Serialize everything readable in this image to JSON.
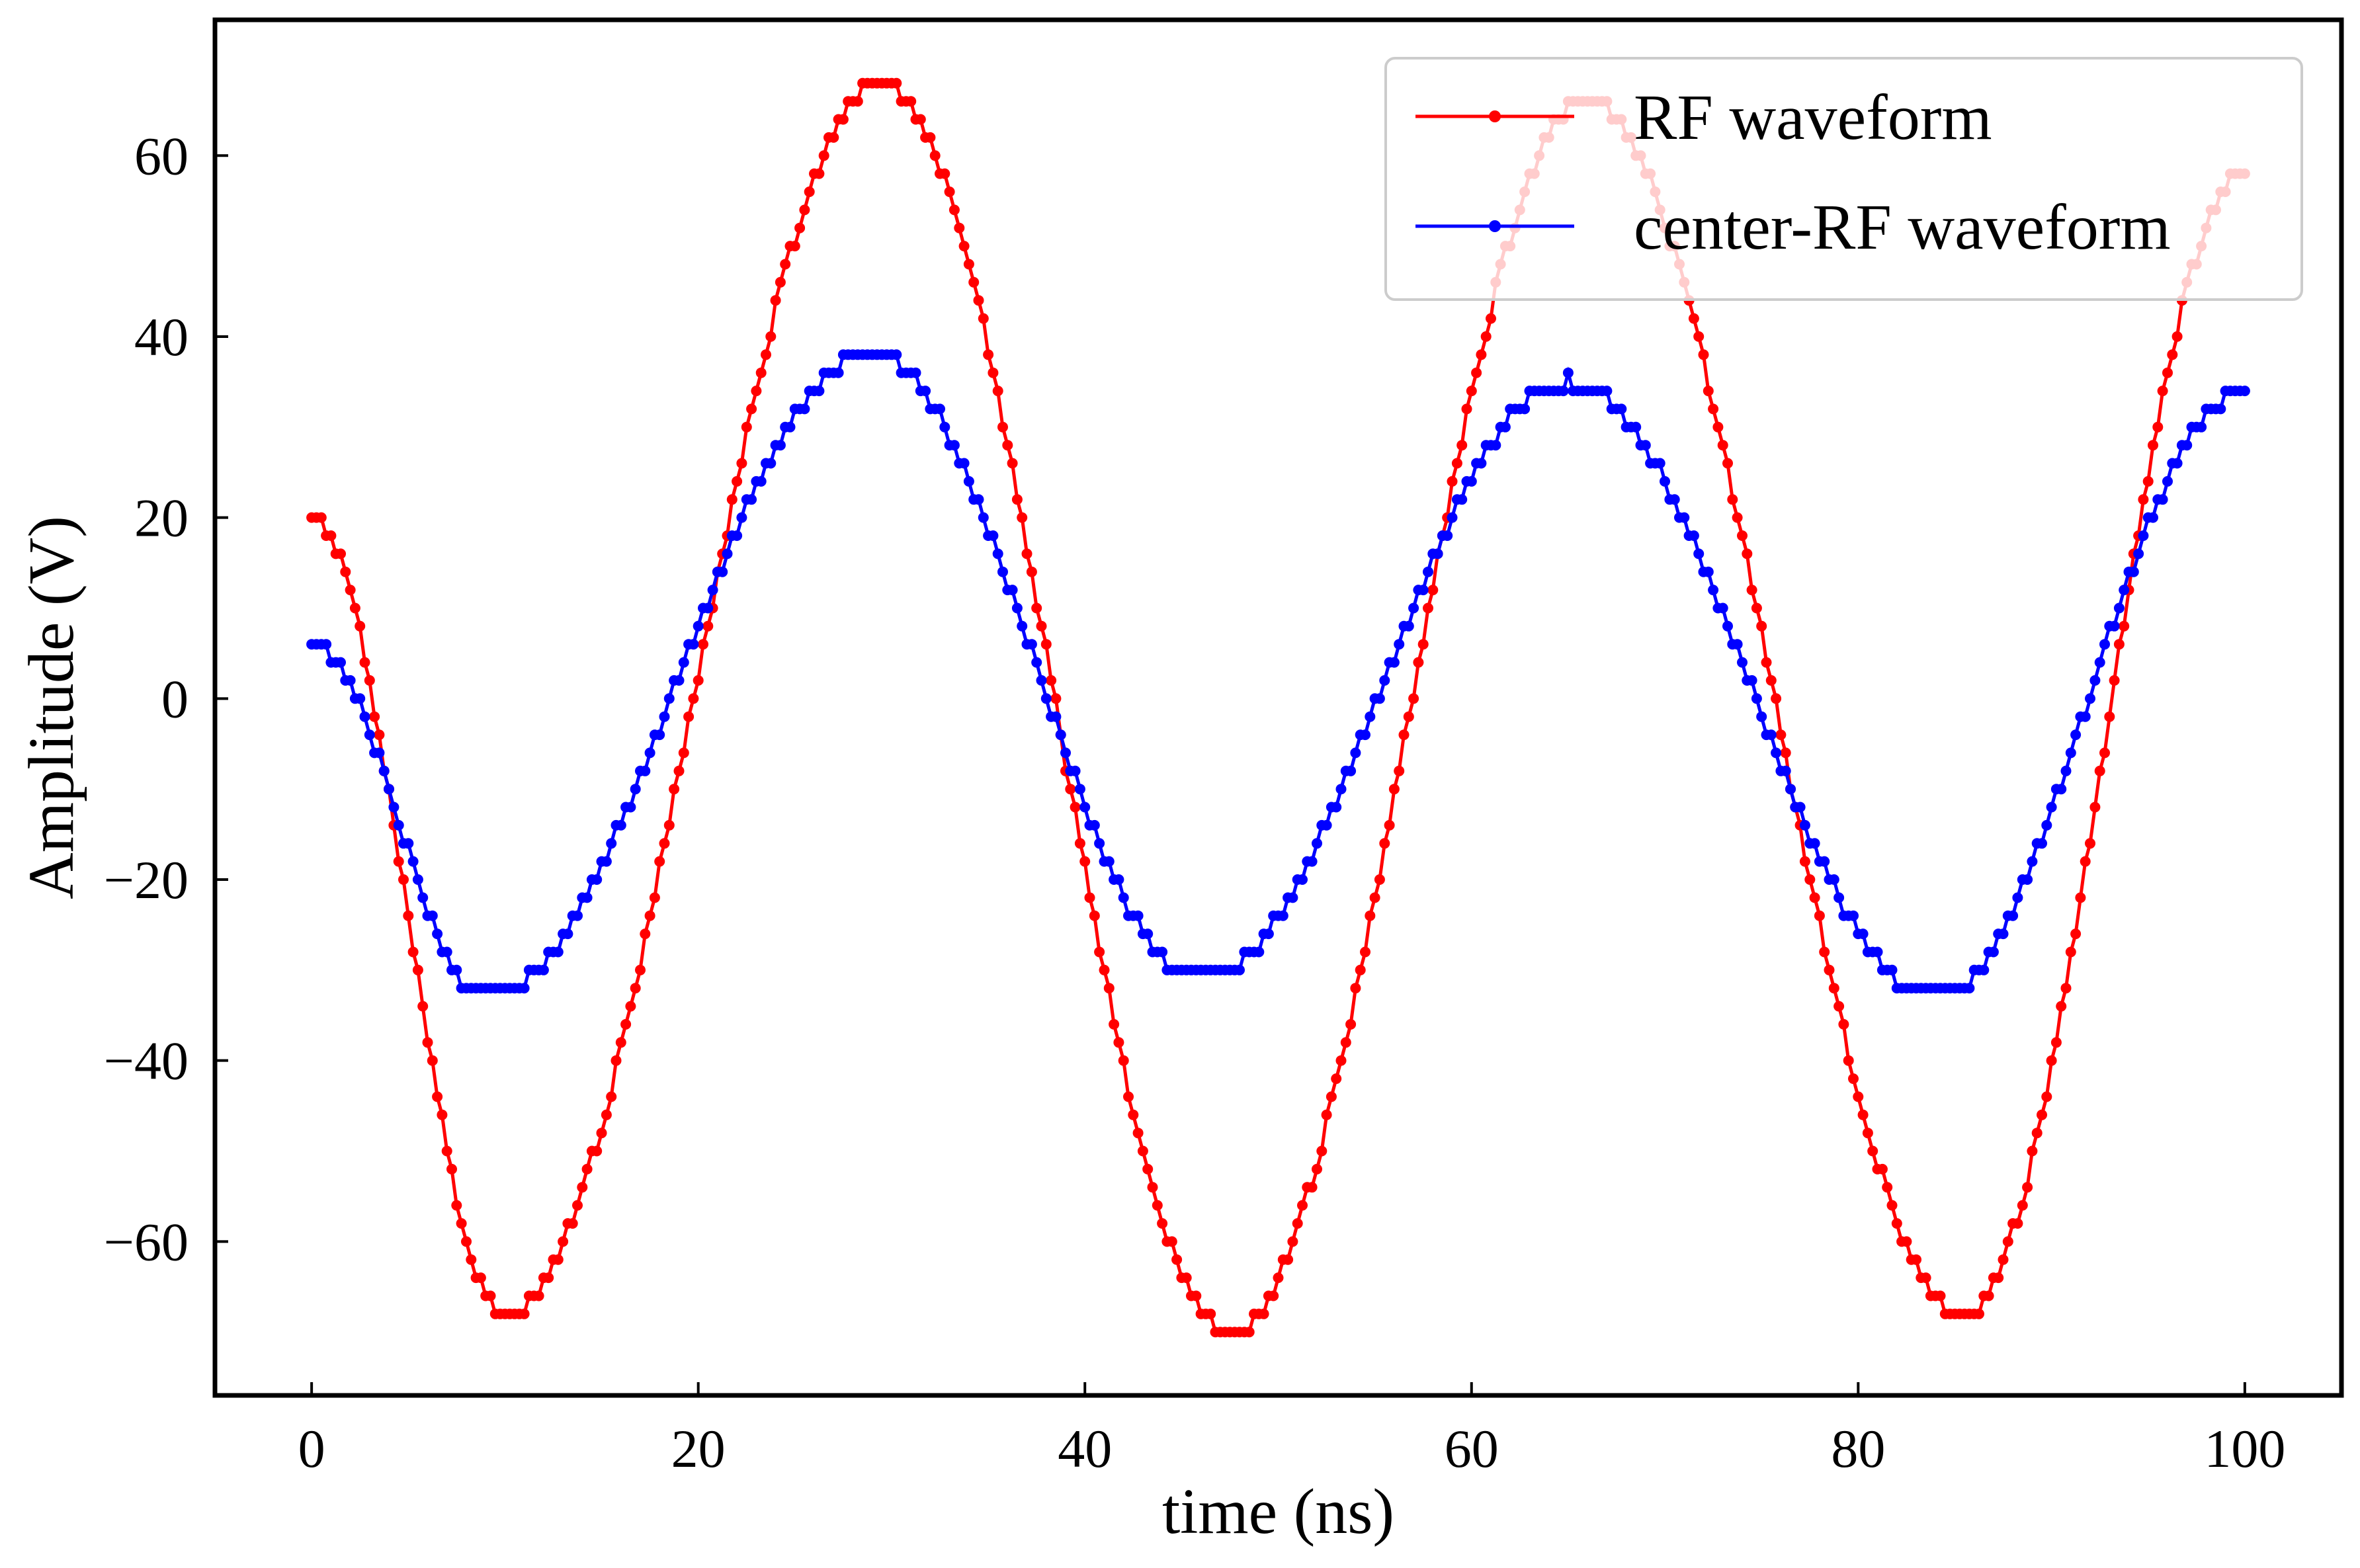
{
  "chart_data": {
    "type": "line",
    "title": "",
    "xlabel": "time (ns)",
    "ylabel": "Amplitude (V)",
    "xlim": [
      -5,
      105
    ],
    "ylim": [
      -77,
      75
    ],
    "xticks": [
      0,
      20,
      40,
      60,
      80,
      100
    ],
    "yticks": [
      -60,
      -40,
      -20,
      0,
      20,
      40,
      60
    ],
    "grid": false,
    "legend": {
      "position": "top-right"
    },
    "sample_interval_ns": 0.25,
    "step_v": 2,
    "series": [
      {
        "name": "RF waveform",
        "color": "#ff0000",
        "marker": "dot",
        "keypoints": [
          {
            "t": 0,
            "v": 20
          },
          {
            "t": 10,
            "v": -68
          },
          {
            "t": 29.5,
            "v": 68
          },
          {
            "t": 47.5,
            "v": -70
          },
          {
            "t": 66,
            "v": 66
          },
          {
            "t": 85.5,
            "v": -68
          },
          {
            "t": 100,
            "v": 58
          }
        ]
      },
      {
        "name": "center-RF waveform",
        "color": "#0000ff",
        "marker": "dot",
        "keypoints": [
          {
            "t": 0,
            "v": 6
          },
          {
            "t": 9,
            "v": -33
          },
          {
            "t": 29,
            "v": 38
          },
          {
            "t": 46,
            "v": -31
          },
          {
            "t": 65,
            "v": 35
          },
          {
            "t": 84,
            "v": -33
          },
          {
            "t": 100,
            "v": 34
          }
        ]
      }
    ]
  }
}
